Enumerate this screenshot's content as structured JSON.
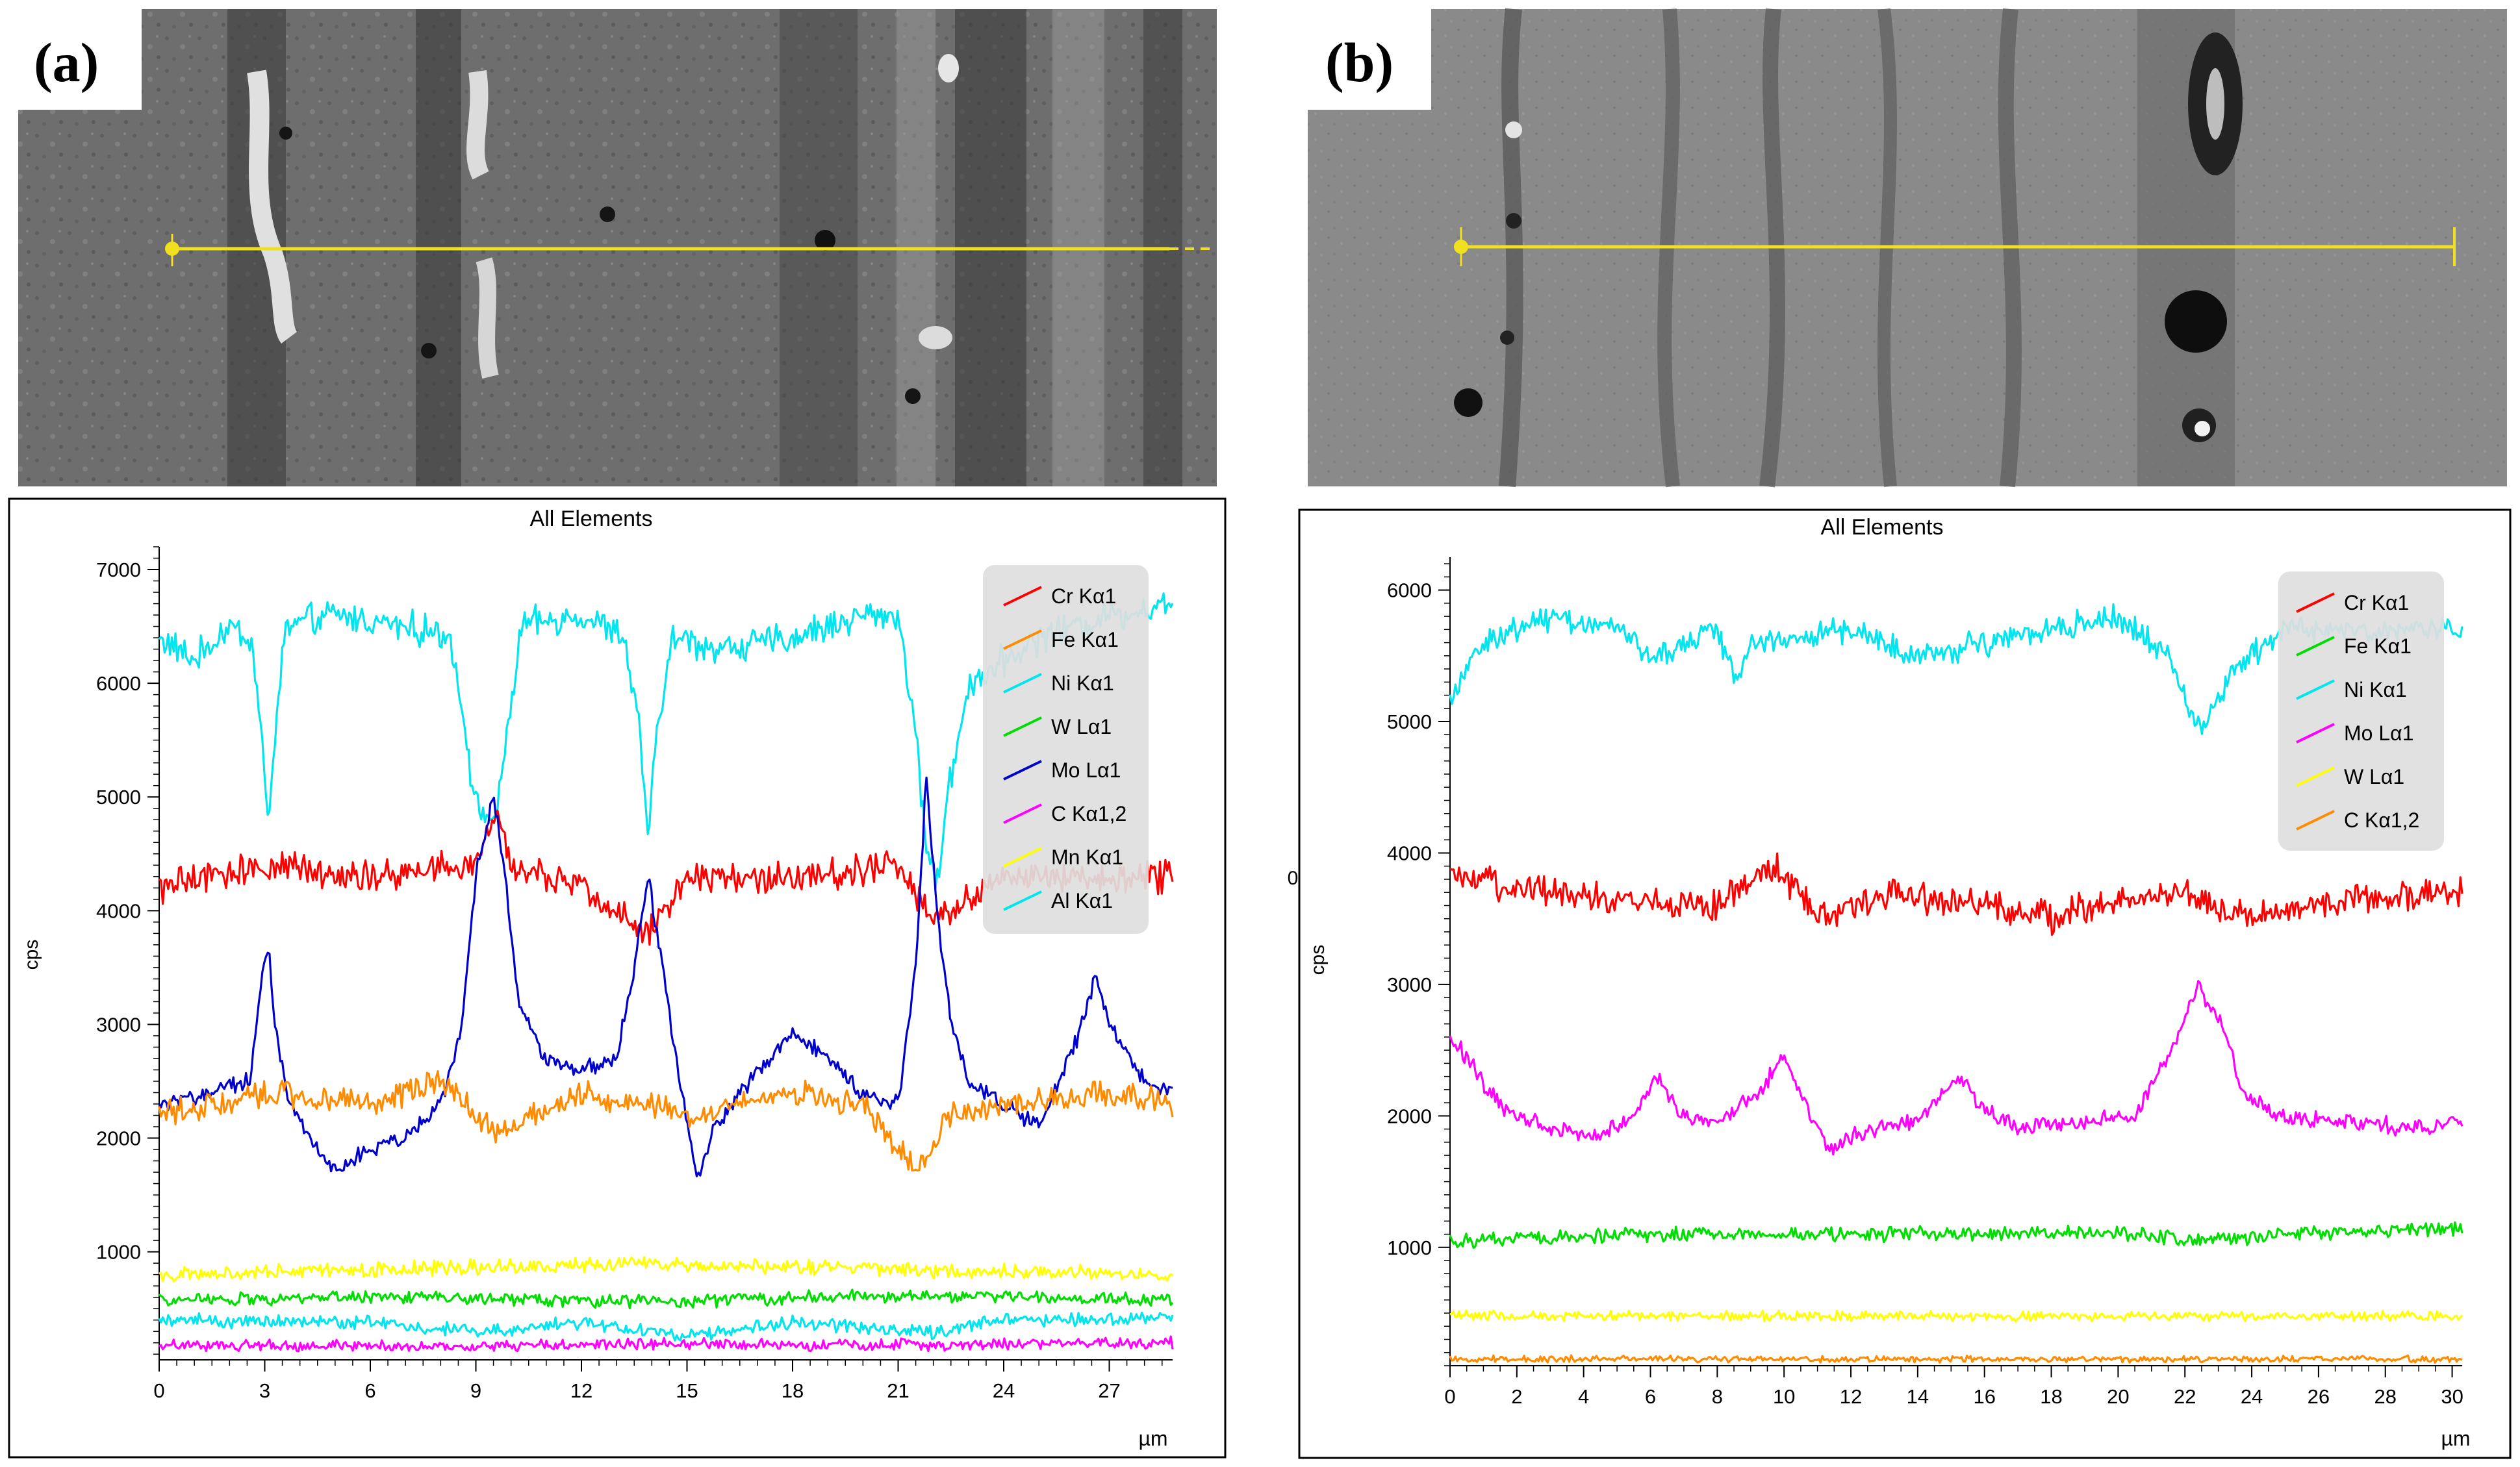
{
  "figure_labels": [
    "(a)",
    "(b)"
  ],
  "chart_data": [
    {
      "type": "line",
      "panel": "(a)",
      "title": "All Elements",
      "xlabel": "µm",
      "ylabel": "cps",
      "xlim": [
        0,
        28.8
      ],
      "ylim": [
        50,
        7200
      ],
      "xticks": [
        0,
        3,
        6,
        9,
        12,
        15,
        18,
        21,
        24,
        27
      ],
      "yticks": [
        1000,
        2000,
        3000,
        4000,
        5000,
        6000,
        7000
      ],
      "grid": false,
      "legend_position": "top-right",
      "legend": [
        "Cr Kα1",
        "Fe Kα1",
        "Ni Kα1",
        "W Lα1",
        "Mo Lα1",
        "C Kα1,2",
        "Mn Kα1",
        "Al Kα1"
      ],
      "series": [
        {
          "name": "Ni Kα1",
          "color": "#00E5EE",
          "noise": 170,
          "points": [
            [
              0,
              6400
            ],
            [
              1,
              6200
            ],
            [
              2,
              6500
            ],
            [
              2.6,
              6400
            ],
            [
              2.9,
              5600
            ],
            [
              3.1,
              4700
            ],
            [
              3.3,
              5600
            ],
            [
              3.6,
              6500
            ],
            [
              5,
              6600
            ],
            [
              7,
              6500
            ],
            [
              8.3,
              6400
            ],
            [
              8.7,
              5600
            ],
            [
              9.0,
              4900
            ],
            [
              9.6,
              4800
            ],
            [
              9.9,
              5600
            ],
            [
              10.3,
              6500
            ],
            [
              12,
              6600
            ],
            [
              13.2,
              6400
            ],
            [
              13.6,
              5700
            ],
            [
              13.9,
              4700
            ],
            [
              14.2,
              5700
            ],
            [
              14.6,
              6400
            ],
            [
              16,
              6300
            ],
            [
              18,
              6400
            ],
            [
              20,
              6600
            ],
            [
              21,
              6600
            ],
            [
              21.4,
              5800
            ],
            [
              21.8,
              4600
            ],
            [
              22.1,
              4200
            ],
            [
              22.4,
              5000
            ],
            [
              23,
              6000
            ],
            [
              25,
              6400
            ],
            [
              27,
              6600
            ],
            [
              28.8,
              6700
            ]
          ]
        },
        {
          "name": "Cr Kα1",
          "color": "#FF0000",
          "noise": 170,
          "points": [
            [
              0,
              4200
            ],
            [
              3,
              4400
            ],
            [
              6,
              4300
            ],
            [
              9,
              4400
            ],
            [
              9.6,
              4900
            ],
            [
              10,
              4400
            ],
            [
              12,
              4200
            ],
            [
              13.8,
              3800
            ],
            [
              15,
              4300
            ],
            [
              18,
              4300
            ],
            [
              21,
              4400
            ],
            [
              22,
              3900
            ],
            [
              24,
              4300
            ],
            [
              26,
              4300
            ],
            [
              28.8,
              4300
            ]
          ]
        },
        {
          "name": "Mo Lα1",
          "color": "#0000CC",
          "noise": 90,
          "points": [
            [
              0,
              2300
            ],
            [
              1.5,
              2400
            ],
            [
              2.6,
              2500
            ],
            [
              2.9,
              3400
            ],
            [
              3.1,
              3700
            ],
            [
              3.3,
              3000
            ],
            [
              3.6,
              2400
            ],
            [
              4.3,
              2000
            ],
            [
              5,
              1700
            ],
            [
              6,
              1900
            ],
            [
              7,
              2000
            ],
            [
              8,
              2300
            ],
            [
              8.6,
              3000
            ],
            [
              9.0,
              4300
            ],
            [
              9.5,
              5000
            ],
            [
              9.8,
              4400
            ],
            [
              10.2,
              3200
            ],
            [
              11,
              2700
            ],
            [
              12,
              2600
            ],
            [
              13,
              2700
            ],
            [
              13.5,
              3500
            ],
            [
              13.9,
              4300
            ],
            [
              14.3,
              3500
            ],
            [
              14.8,
              2500
            ],
            [
              15.3,
              1600
            ],
            [
              15.8,
              2100
            ],
            [
              17,
              2600
            ],
            [
              18,
              2900
            ],
            [
              19,
              2700
            ],
            [
              20,
              2400
            ],
            [
              21,
              2300
            ],
            [
              21.5,
              3500
            ],
            [
              21.8,
              5200
            ],
            [
              22.1,
              4000
            ],
            [
              22.5,
              3000
            ],
            [
              23,
              2500
            ],
            [
              25,
              2100
            ],
            [
              26,
              2800
            ],
            [
              26.6,
              3400
            ],
            [
              27.2,
              2900
            ],
            [
              28,
              2500
            ],
            [
              28.8,
              2400
            ]
          ]
        },
        {
          "name": "Fe Kα1",
          "color": "#FF8C00",
          "noise": 140,
          "points": [
            [
              0,
              2200
            ],
            [
              3,
              2400
            ],
            [
              6,
              2300
            ],
            [
              8,
              2500
            ],
            [
              9.6,
              2050
            ],
            [
              12,
              2400
            ],
            [
              15,
              2200
            ],
            [
              18,
              2400
            ],
            [
              20,
              2300
            ],
            [
              21.6,
              1700
            ],
            [
              22.5,
              2200
            ],
            [
              24,
              2300
            ],
            [
              27,
              2400
            ],
            [
              28.8,
              2300
            ]
          ]
        },
        {
          "name": "Mn Kα1",
          "color": "#FFFF00",
          "noise": 80,
          "points": [
            [
              0,
              800
            ],
            [
              7,
              850
            ],
            [
              14,
              900
            ],
            [
              21,
              850
            ],
            [
              28.8,
              800
            ]
          ]
        },
        {
          "name": "W Lα1",
          "color": "#00DD00",
          "noise": 70,
          "points": [
            [
              0,
              580
            ],
            [
              7,
              600
            ],
            [
              14,
              560
            ],
            [
              21,
              620
            ],
            [
              28.8,
              580
            ]
          ]
        },
        {
          "name": "Al Kα1",
          "color": "#00E5EE",
          "noise": 70,
          "points": [
            [
              0,
              400
            ],
            [
              6,
              380
            ],
            [
              9,
              300
            ],
            [
              12,
              380
            ],
            [
              15,
              250
            ],
            [
              18,
              380
            ],
            [
              22,
              280
            ],
            [
              24,
              400
            ],
            [
              28.8,
              420
            ]
          ]
        },
        {
          "name": "C Kα1,2",
          "color": "#FF00FF",
          "noise": 60,
          "points": [
            [
              0,
              180
            ],
            [
              7,
              170
            ],
            [
              14,
              190
            ],
            [
              21,
              180
            ],
            [
              28.8,
              200
            ]
          ]
        }
      ]
    },
    {
      "type": "line",
      "panel": "(b)",
      "title": "All Elements",
      "xlabel": "µm",
      "ylabel": "cps",
      "side_label": "0",
      "xlim": [
        0,
        30.3
      ],
      "ylim": [
        100,
        6250
      ],
      "xticks": [
        0,
        2,
        4,
        6,
        8,
        10,
        12,
        14,
        16,
        18,
        20,
        22,
        24,
        26,
        28,
        30
      ],
      "yticks": [
        1000,
        2000,
        3000,
        4000,
        5000,
        6000
      ],
      "grid": false,
      "legend_position": "top-right",
      "legend": [
        "Cr Kα1",
        "Fe Kα1",
        "Ni Kα1",
        "Mo Lα1",
        "W Lα1",
        "C Kα1,2"
      ],
      "series": [
        {
          "name": "Ni Kα1",
          "color": "#00E5EE",
          "noise": 120,
          "points": [
            [
              0,
              5200
            ],
            [
              1,
              5600
            ],
            [
              3,
              5800
            ],
            [
              5,
              5700
            ],
            [
              6,
              5500
            ],
            [
              8,
              5700
            ],
            [
              8.6,
              5300
            ],
            [
              9,
              5600
            ],
            [
              12,
              5700
            ],
            [
              14,
              5500
            ],
            [
              16,
              5600
            ],
            [
              18,
              5700
            ],
            [
              20,
              5800
            ],
            [
              21.5,
              5500
            ],
            [
              22.5,
              4900
            ],
            [
              23.5,
              5400
            ],
            [
              25,
              5700
            ],
            [
              27,
              5700
            ],
            [
              30.3,
              5700
            ]
          ]
        },
        {
          "name": "Cr Kα1",
          "color": "#FF0000",
          "noise": 140,
          "points": [
            [
              0,
              3800
            ],
            [
              5,
              3650
            ],
            [
              8,
              3600
            ],
            [
              9.8,
              3900
            ],
            [
              11,
              3500
            ],
            [
              13,
              3700
            ],
            [
              16,
              3600
            ],
            [
              18,
              3500
            ],
            [
              20,
              3650
            ],
            [
              22,
              3700
            ],
            [
              24,
              3500
            ],
            [
              27,
              3650
            ],
            [
              30.3,
              3700
            ]
          ]
        },
        {
          "name": "Mo Lα1",
          "color": "#FF00FF",
          "noise": 80,
          "points": [
            [
              0,
              2600
            ],
            [
              0.6,
              2400
            ],
            [
              1.6,
              2050
            ],
            [
              3,
              1900
            ],
            [
              4.5,
              1850
            ],
            [
              5.5,
              2000
            ],
            [
              6.2,
              2300
            ],
            [
              7,
              2000
            ],
            [
              8,
              1950
            ],
            [
              9.3,
              2200
            ],
            [
              10,
              2450
            ],
            [
              10.6,
              2100
            ],
            [
              11.3,
              1750
            ],
            [
              12.5,
              1900
            ],
            [
              14,
              1950
            ],
            [
              15.2,
              2300
            ],
            [
              16,
              2050
            ],
            [
              17,
              1900
            ],
            [
              19,
              1950
            ],
            [
              20.5,
              2000
            ],
            [
              21.6,
              2500
            ],
            [
              22.4,
              3000
            ],
            [
              23.1,
              2700
            ],
            [
              23.8,
              2150
            ],
            [
              25,
              2000
            ],
            [
              27,
              1950
            ],
            [
              29,
              1900
            ],
            [
              30.3,
              1950
            ]
          ]
        },
        {
          "name": "Fe Kα1",
          "color": "#00DD00",
          "noise": 65,
          "points": [
            [
              0,
              1050
            ],
            [
              5,
              1100
            ],
            [
              10,
              1100
            ],
            [
              15,
              1100
            ],
            [
              20,
              1120
            ],
            [
              22,
              1050
            ],
            [
              25,
              1100
            ],
            [
              30.3,
              1150
            ]
          ]
        },
        {
          "name": "W Lα1",
          "color": "#FFFF00",
          "noise": 45,
          "points": [
            [
              0,
              480
            ],
            [
              10,
              480
            ],
            [
              20,
              470
            ],
            [
              30.3,
              480
            ]
          ]
        },
        {
          "name": "C Kα1,2",
          "color": "#FF8C00",
          "noise": 30,
          "points": [
            [
              0,
              150
            ],
            [
              10,
              150
            ],
            [
              20,
              150
            ],
            [
              30.3,
              150
            ]
          ]
        }
      ]
    }
  ]
}
